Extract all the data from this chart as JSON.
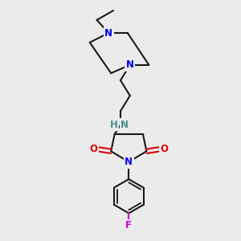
{
  "bg_color": "#ebebeb",
  "bond_color": "#1a1a1a",
  "N_color": "#0000ee",
  "NH_color": "#4a8a8a",
  "O_color": "#dd0000",
  "F_color": "#cc00cc",
  "bond_width": 1.5,
  "font_size": 8.5,
  "fig_size": [
    3.0,
    3.0
  ],
  "dpi": 100,
  "xlim": [
    0,
    10
  ],
  "ylim": [
    0,
    10
  ]
}
